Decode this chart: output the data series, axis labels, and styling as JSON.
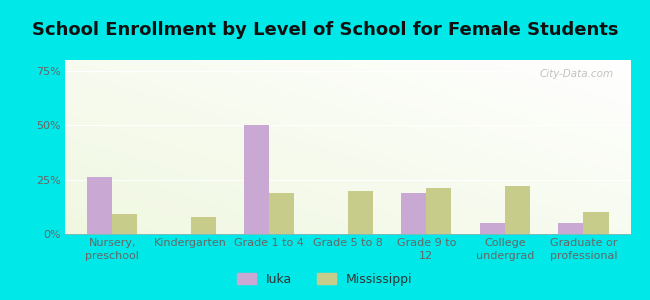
{
  "title": "School Enrollment by Level of School for Female Students",
  "categories": [
    "Nursery,\npreschool",
    "Kindergarten",
    "Grade 1 to 4",
    "Grade 5 to 8",
    "Grade 9 to\n12",
    "College\nundergrad",
    "Graduate or\nprofessional"
  ],
  "iuka_values": [
    26,
    0,
    50,
    0,
    19,
    5,
    5
  ],
  "mississippi_values": [
    9,
    8,
    19,
    20,
    21,
    22,
    10
  ],
  "iuka_color": "#c9a8d4",
  "mississippi_color": "#c8cc8a",
  "background_color": "#00e8e8",
  "ylim": [
    0,
    80
  ],
  "yticks": [
    0,
    25,
    50,
    75
  ],
  "ytick_labels": [
    "0%",
    "25%",
    "50%",
    "75%"
  ],
  "title_fontsize": 13,
  "tick_fontsize": 8,
  "legend_fontsize": 9,
  "bar_width": 0.32,
  "watermark": "City-Data.com",
  "grid_color": "#ffffff",
  "tick_color": "#666666",
  "legend_labels": [
    "Iuka",
    "Mississippi"
  ]
}
